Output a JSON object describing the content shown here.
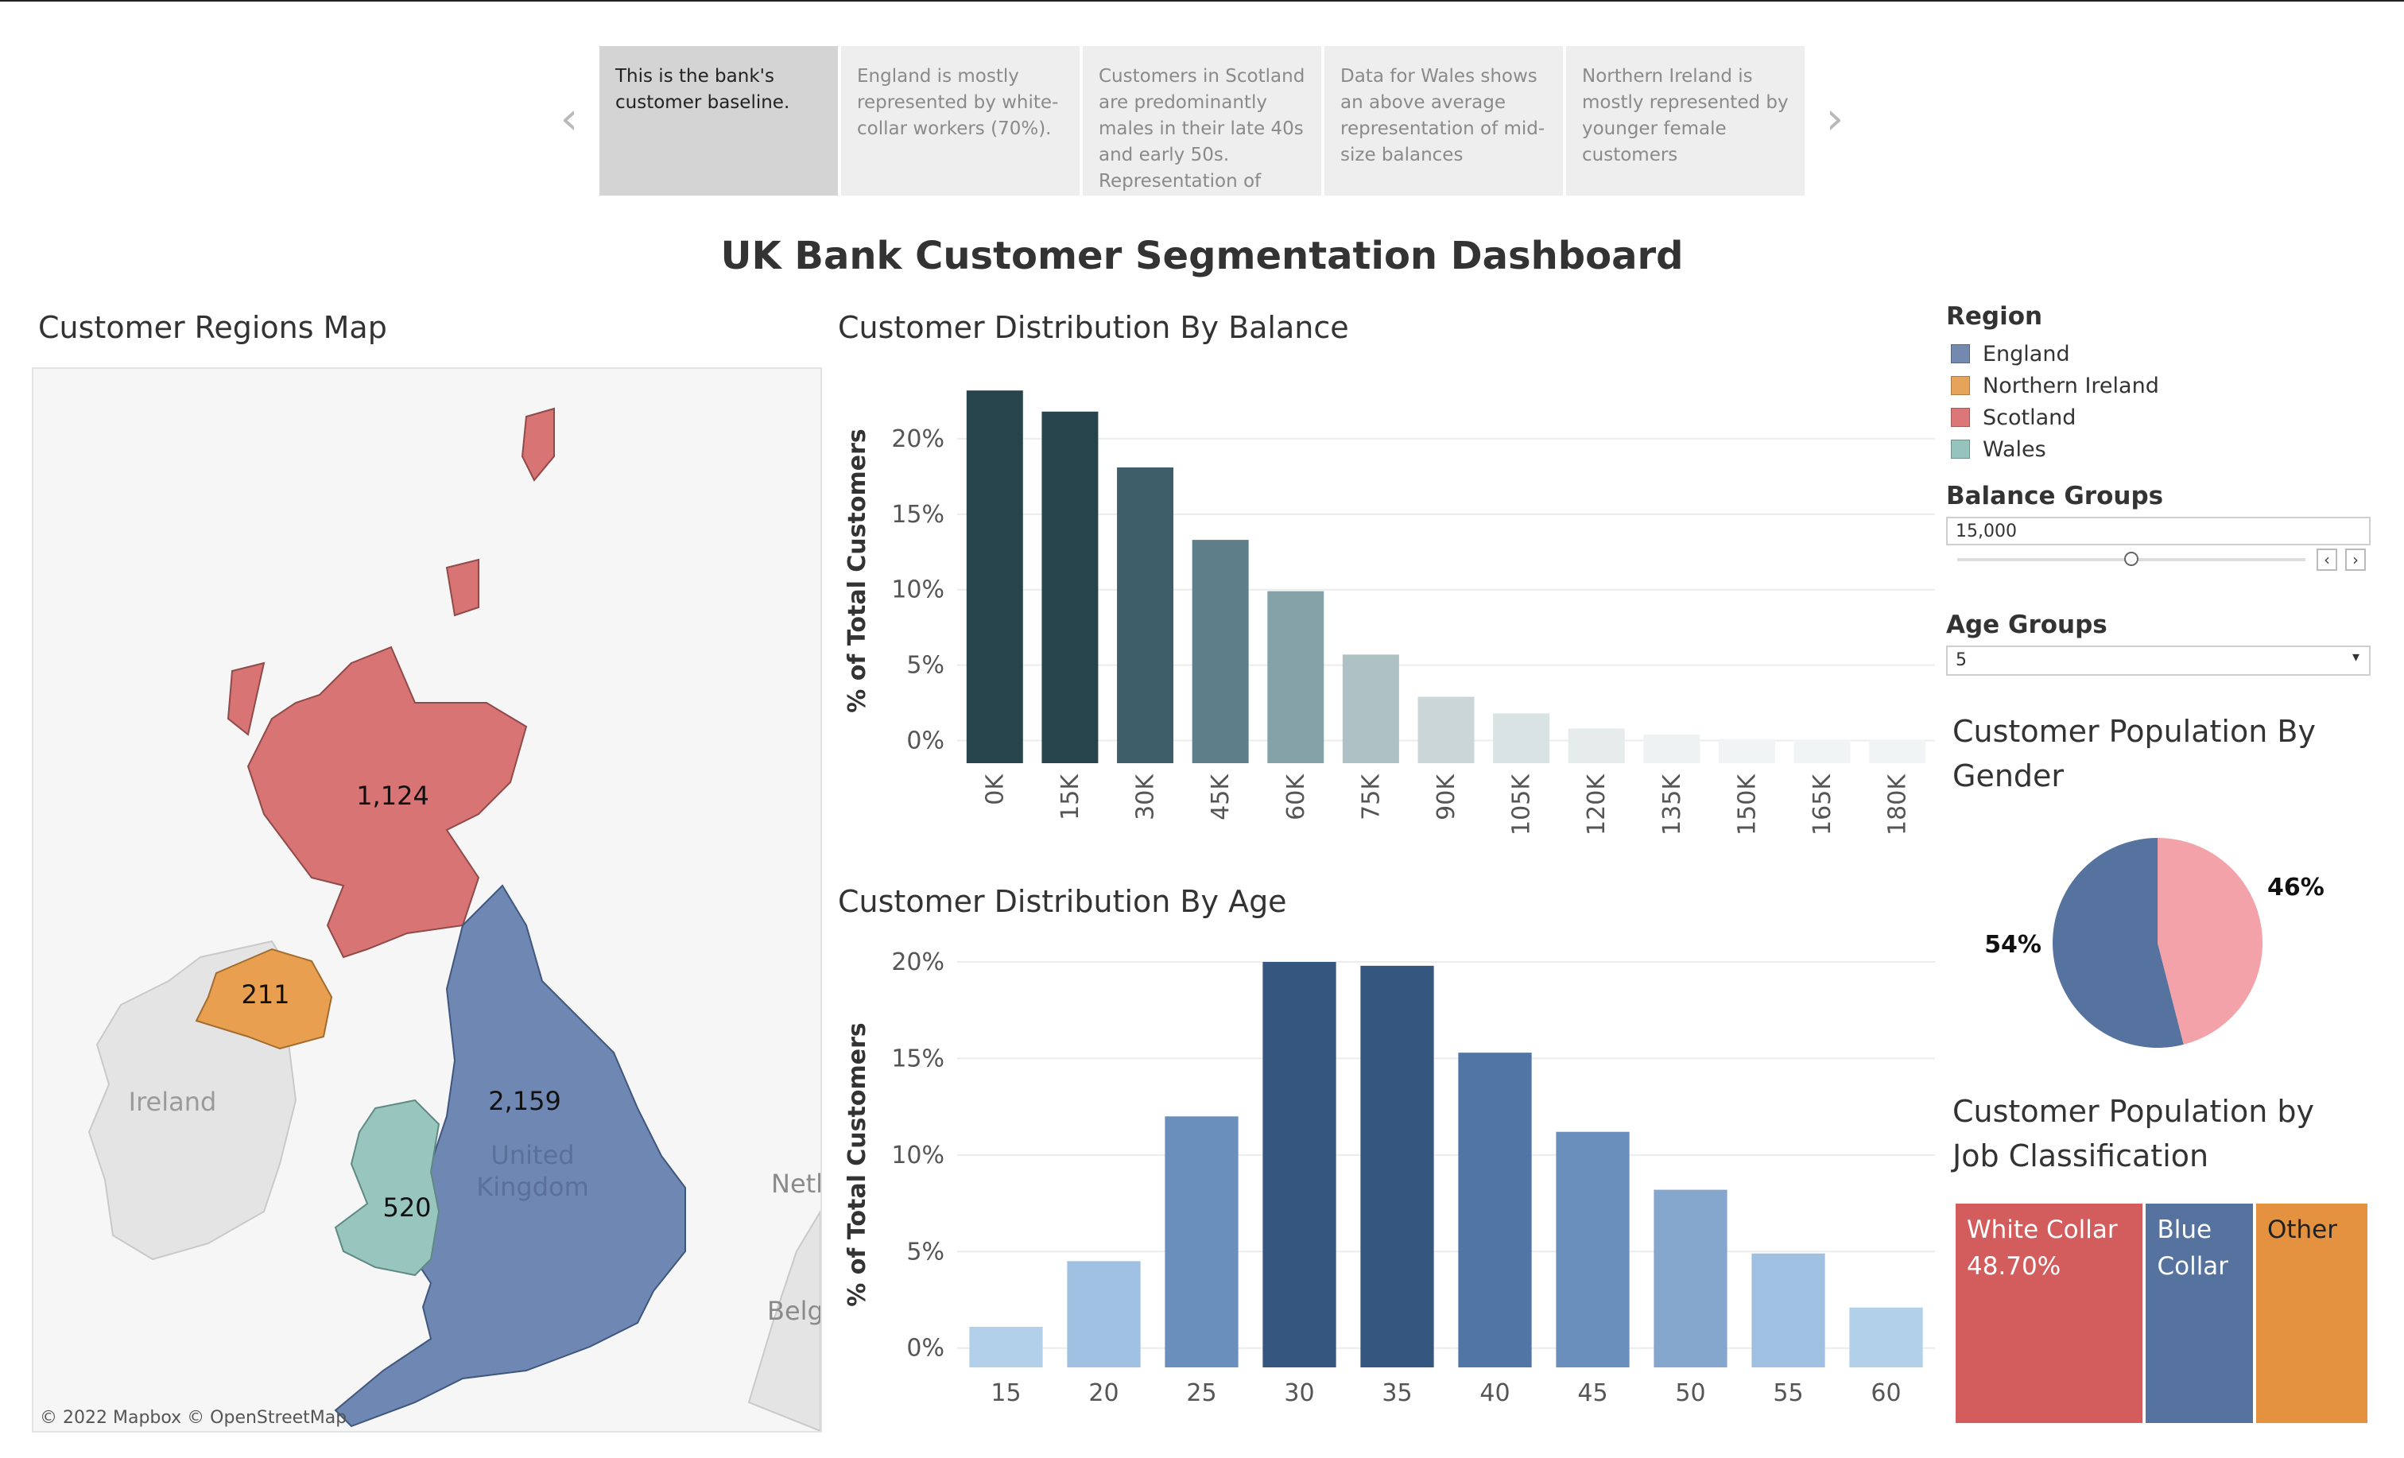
{
  "story": {
    "points": [
      {
        "text": "This is the bank's customer baseline.",
        "active": true
      },
      {
        "text": "England is mostly represented by white-collar workers (70%).",
        "active": false
      },
      {
        "text": "Customers in Scotland are predominantly males in their late 40s and early 50s. Representation of",
        "active": false
      },
      {
        "text": "Data for Wales shows an above average representation of mid-size balances",
        "active": false
      },
      {
        "text": "Northern Ireland is mostly represented by younger female customers",
        "active": false
      }
    ],
    "prev_icon": "chevron-left-icon",
    "next_icon": "chevron-right-icon"
  },
  "dashboard": {
    "title": "UK Bank Customer Segmentation Dashboard"
  },
  "map": {
    "title": "Customer Regions Map",
    "attribution": "© 2022 Mapbox  © OpenStreetMap",
    "regions": [
      {
        "name": "Scotland",
        "value": "1,124",
        "color": "#d87474"
      },
      {
        "name": "Northern Ireland",
        "value": "211",
        "color": "#e8a050"
      },
      {
        "name": "England",
        "value": "2,159",
        "color": "#6f88b3"
      },
      {
        "name": "Wales",
        "value": "520",
        "color": "#99c5bf"
      }
    ],
    "basemap_labels": {
      "ireland": "Ireland",
      "uk_line1": "United",
      "uk_line2": "Kingdom",
      "neth": "Netl",
      "belg": "Belg"
    }
  },
  "chart_data": [
    {
      "type": "bar",
      "title": "Customer Distribution By Balance",
      "ylabel": "% of Total Customers",
      "xlabel": "",
      "categories": [
        "0K",
        "15K",
        "30K",
        "45K",
        "60K",
        "75K",
        "90K",
        "105K",
        "120K",
        "135K",
        "150K",
        "165K",
        "180K"
      ],
      "values": [
        23.2,
        21.8,
        18.1,
        13.3,
        9.9,
        5.7,
        2.9,
        1.8,
        0.8,
        0.4,
        0.1,
        0.05,
        0.05
      ],
      "colors": [
        "#27444d",
        "#27444d",
        "#3e5f69",
        "#5e7f89",
        "#84a2a8",
        "#aec1c5",
        "#cad6d8",
        "#dae3e4",
        "#e6ecec",
        "#eef2f2",
        "#f1f4f4",
        "#f1f4f4",
        "#f1f4f4"
      ],
      "yticks": [
        0,
        5,
        10,
        15,
        20
      ],
      "ytick_labels": [
        "0%",
        "5%",
        "10%",
        "15%",
        "20%"
      ],
      "ylim": [
        -1.5,
        24
      ],
      "grid": true
    },
    {
      "type": "bar",
      "title": "Customer Distribution By Age",
      "ylabel": "% of Total Customers",
      "xlabel": "",
      "categories": [
        "15",
        "20",
        "25",
        "30",
        "35",
        "40",
        "45",
        "50",
        "55",
        "60"
      ],
      "values": [
        1.1,
        4.5,
        12.0,
        20.0,
        19.8,
        15.3,
        11.2,
        8.2,
        4.9,
        2.1
      ],
      "colors": [
        "#b3d0ea",
        "#9fc0e0",
        "#6b8fbd",
        "#34567f",
        "#34567f",
        "#5175a5",
        "#6b8fbd",
        "#86a7cd",
        "#9fc0e0",
        "#b3d0ea"
      ],
      "yticks": [
        0,
        5,
        10,
        15,
        20
      ],
      "ytick_labels": [
        "0%",
        "5%",
        "10%",
        "15%",
        "20%"
      ],
      "ylim": [
        -1,
        20
      ],
      "grid": true
    },
    {
      "type": "pie",
      "title": "Customer Population By Gender",
      "slices": [
        {
          "value": 54,
          "label": "54%",
          "color": "#56739f"
        },
        {
          "value": 46,
          "label": "46%",
          "color": "#f2a2a8"
        }
      ]
    },
    {
      "type": "table",
      "title": "Customer Population by Job Classification",
      "cells": [
        {
          "line1": "White Collar",
          "line2": "48.70%",
          "value": 48.7,
          "color": "#d35d5d"
        },
        {
          "line1": "Blue",
          "line2": "Collar",
          "value": 25.0,
          "color": "#56739f"
        },
        {
          "line1": "Other",
          "line2": "",
          "value": 26.3,
          "color": "#e4923f"
        }
      ]
    }
  ],
  "legend": {
    "title": "Region",
    "items": [
      {
        "label": "England",
        "color": "#7489b0"
      },
      {
        "label": "Northern Ireland",
        "color": "#e6a35a"
      },
      {
        "label": "Scotland",
        "color": "#dd7676"
      },
      {
        "label": "Wales",
        "color": "#95c3bd"
      }
    ]
  },
  "controls": {
    "balance": {
      "title": "Balance Groups",
      "value": "15,000",
      "slider_fraction": 0.5
    },
    "age": {
      "title": "Age Groups",
      "value": "5"
    }
  },
  "gender_title": {
    "line1": "Customer Population By",
    "line2": "Gender"
  },
  "job_title": {
    "line1": "Customer Population by",
    "line2": "Job Classification"
  }
}
